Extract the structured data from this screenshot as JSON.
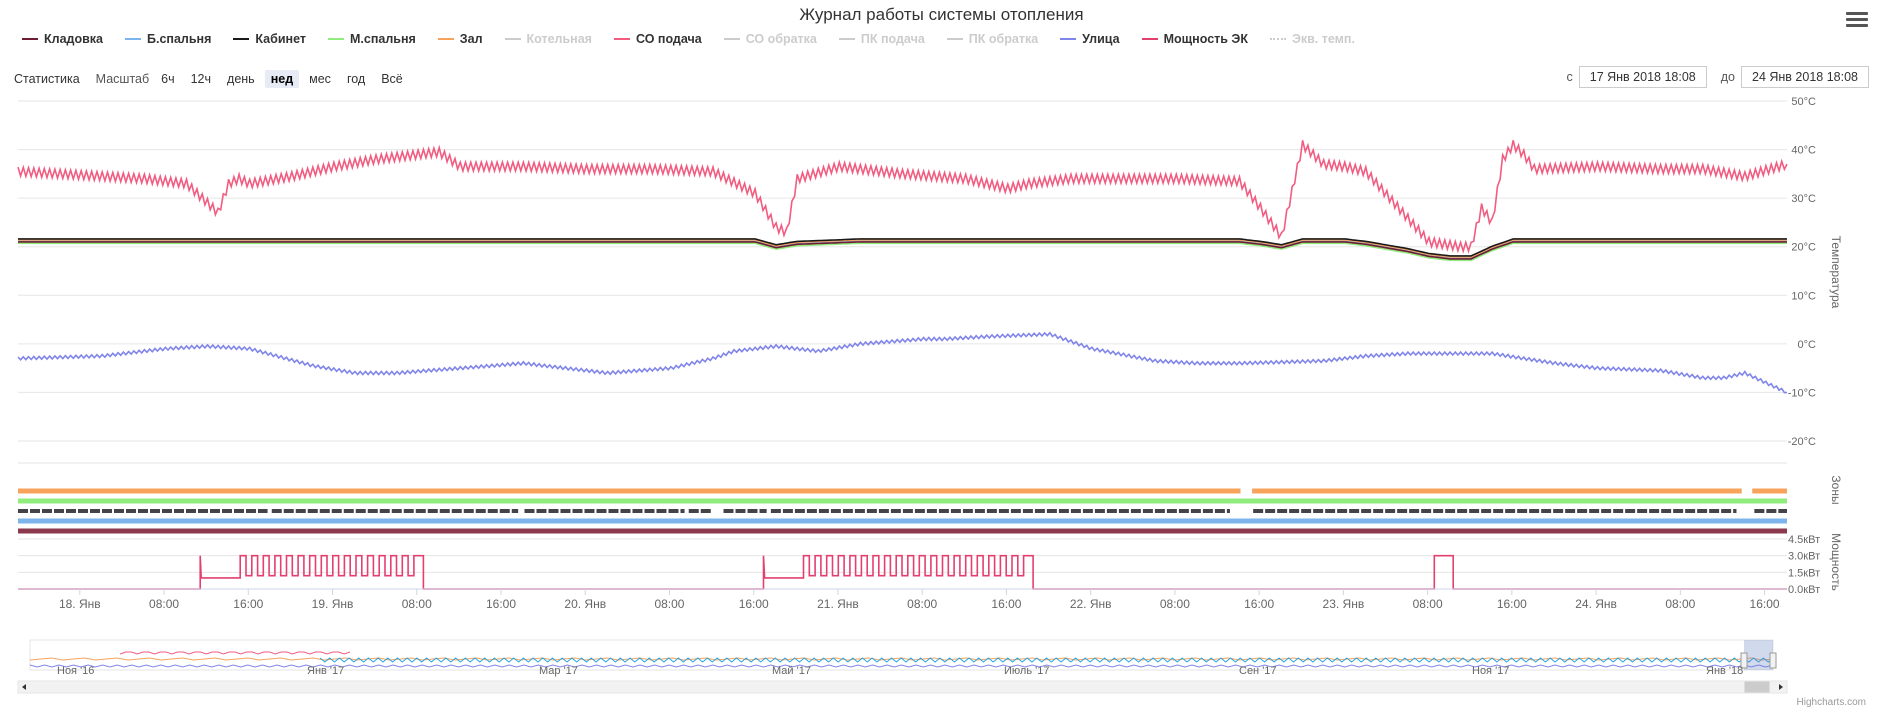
{
  "chart_data": {
    "type": "line",
    "title": "Журнал работы системы отопления",
    "series": [
      {
        "name": "Кладовка",
        "color": "#6e1e32",
        "visible": true
      },
      {
        "name": "Б.спальня",
        "color": "#7cb5ec",
        "visible": true
      },
      {
        "name": "Кабинет",
        "color": "#1a1a1a",
        "visible": true
      },
      {
        "name": "М.спальня",
        "color": "#90ed7d",
        "visible": true
      },
      {
        "name": "Зал",
        "color": "#f7a35c",
        "visible": true
      },
      {
        "name": "Котельная",
        "color": "#cccccc",
        "visible": false
      },
      {
        "name": "СО подача",
        "color": "#f15c80",
        "visible": true
      },
      {
        "name": "СО обратка",
        "color": "#cccccc",
        "visible": false
      },
      {
        "name": "ПК подача",
        "color": "#cccccc",
        "visible": false
      },
      {
        "name": "ПК обратка",
        "color": "#cccccc",
        "visible": false
      },
      {
        "name": "Улица",
        "color": "#8085e9",
        "visible": true
      },
      {
        "name": "Мощность ЭК",
        "color": "#e4406f",
        "visible": true
      },
      {
        "name": "Экв. темп.",
        "color": "#cccccc",
        "visible": false
      }
    ],
    "x_axis": {
      "range": [
        "17 Янв 2018 18:08",
        "24 Янв 2018 18:08"
      ],
      "tick_labels": [
        "18. Янв",
        "08:00",
        "16:00",
        "19. Янв",
        "08:00",
        "16:00",
        "20. Янв",
        "08:00",
        "16:00",
        "21. Янв",
        "08:00",
        "16:00",
        "22. Янв",
        "08:00",
        "16:00",
        "23. Янв",
        "08:00",
        "16:00",
        "24. Янв",
        "08:00",
        "16:00"
      ],
      "first_tick_hours": 5.87,
      "tick_step_hours": 8
    },
    "y_axis_temperature": {
      "title": "Температура",
      "range": [
        -20,
        50
      ],
      "ticks": [
        50,
        40,
        30,
        20,
        10,
        0,
        -10,
        -20
      ],
      "tick_labels": [
        "50°C",
        "40°C",
        "30°C",
        "20°C",
        "10°C",
        "0°C",
        "-10°C",
        "-20°C"
      ]
    },
    "y_axis_zones": {
      "title": "Зоны"
    },
    "y_axis_power": {
      "title": "Мощность",
      "range": [
        0,
        4.5
      ],
      "ticks": [
        4.5,
        3.0,
        1.5,
        0.0
      ],
      "tick_labels": [
        "4.5кВт",
        "3.0кВт",
        "1.5кВт",
        "0.0кВт"
      ]
    },
    "data": {
      "co_supply": {
        "x_hours": [
          0,
          4,
          8,
          12,
          16,
          19,
          20,
          21,
          22,
          26,
          30,
          34,
          38,
          40,
          42,
          44,
          48,
          54,
          60,
          66,
          70,
          72,
          73,
          74,
          78,
          84,
          90,
          94,
          96,
          100,
          104,
          110,
          116,
          118,
          120,
          122,
          124,
          126,
          128,
          134,
          137,
          138,
          139,
          140,
          141,
          142,
          143,
          144,
          150,
          156,
          160,
          164,
          168
        ],
        "values": [
          35.5,
          35,
          34.5,
          34,
          33,
          27,
          33,
          34,
          33,
          34.5,
          36.5,
          38,
          39,
          39.5,
          36.5,
          36.5,
          36.5,
          36,
          36,
          35.5,
          31,
          24,
          23,
          34,
          36.5,
          35,
          34,
          32,
          33,
          34,
          34,
          34,
          33.5,
          28,
          22,
          41,
          37,
          36.5,
          35.5,
          21,
          20,
          20,
          28,
          25,
          38,
          41,
          39,
          36,
          36.5,
          36,
          36,
          34.5,
          37
        ]
      },
      "indoor_average": {
        "x_hours": [
          0,
          40,
          70,
          72,
          74,
          80,
          100,
          116,
          118,
          120,
          122,
          124,
          126,
          128,
          132,
          134,
          136,
          138,
          140,
          142,
          160,
          168
        ],
        "values": [
          21,
          21,
          21,
          19.8,
          20.5,
          21,
          21,
          21,
          20.5,
          19.8,
          21,
          21,
          21,
          20.5,
          19,
          18,
          17.5,
          17.5,
          19.5,
          21,
          21,
          21
        ]
      },
      "outdoor": {
        "x_hours": [
          0,
          8,
          14,
          18,
          22,
          28,
          32,
          36,
          42,
          48,
          56,
          62,
          66,
          68,
          72,
          76,
          80,
          86,
          88,
          92,
          98,
          102,
          108,
          112,
          116,
          124,
          128,
          132,
          136,
          140,
          146,
          150,
          156,
          160,
          162,
          164,
          168
        ],
        "values": [
          -3,
          -2.5,
          -1,
          -0.5,
          -1,
          -4.5,
          -6,
          -6,
          -5,
          -4,
          -6,
          -5,
          -3,
          -1.5,
          -0.5,
          -1.5,
          0,
          1,
          1,
          1.5,
          2,
          -1,
          -3.5,
          -4,
          -4,
          -3.5,
          -2.5,
          -2,
          -2,
          -2,
          -4,
          -5,
          -5.5,
          -7,
          -7,
          -6,
          -10
        ]
      },
      "zones": [
        {
          "color": "#f7a35c",
          "dashed": false,
          "gaps_hours": [
            [
              116.1,
              117.2
            ],
            [
              163.7,
              164.7
            ]
          ]
        },
        {
          "color": "#90ed7d",
          "dashed": false,
          "gaps_hours": []
        },
        {
          "color": "#434348",
          "dashed": true,
          "gaps_hours": [
            [
              23.7,
              24.1
            ],
            [
              47.5,
              48.1
            ],
            [
              63.3,
              63.7
            ],
            [
              65.8,
              67
            ],
            [
              71.1,
              71.5
            ],
            [
              115.1,
              117.3
            ],
            [
              163.2,
              164.9
            ]
          ]
        },
        {
          "color": "#7cb5ec",
          "dashed": false,
          "gaps_hours": []
        },
        {
          "color": "#8b3a4e",
          "dashed": false,
          "gaps_hours": []
        }
      ],
      "power_on_intervals_hours": [
        {
          "start": 17.3,
          "end": 38.5,
          "profile": "cycling"
        },
        {
          "start": 70.8,
          "end": 96.4,
          "profile": "cycling"
        },
        {
          "start": 134.5,
          "end": 136.3,
          "profile": "steady"
        }
      ]
    },
    "navigator": {
      "tick_labels": [
        "Ноя '16",
        "Янв '17",
        "Мар '17",
        "Май '17",
        "Июль '17",
        "Сен '17",
        "Ноя '17",
        "Янв '18"
      ]
    },
    "credits": "Highcharts.com"
  },
  "toolbar": {
    "stats_label": "Статистика",
    "scale_label": "Масштаб",
    "zoom_buttons": [
      "6ч",
      "12ч",
      "день",
      "нед",
      "мес",
      "год",
      "Всё"
    ],
    "active_zoom": "нед"
  },
  "range": {
    "from_label": "с",
    "from_value": "17 Янв 2018 18:08",
    "to_label": "до",
    "to_value": "24 Янв 2018 18:08"
  },
  "icons": {
    "menu": "hamburger-menu-icon"
  }
}
